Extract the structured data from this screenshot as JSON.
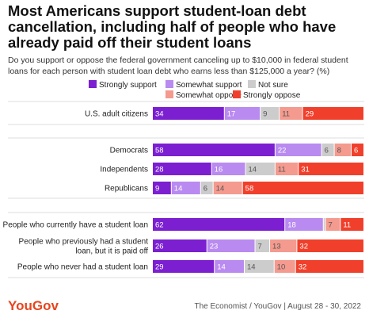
{
  "title": "Most Americans support student-loan debt cancellation, including half of people who have already paid off their student loans",
  "subtitle": "Do you support or oppose the federal government canceling up to $10,000 in federal student loans for each person with student loan debt who earns less than $125,000 a year? (%)",
  "legend": [
    {
      "label": "Strongly support",
      "color": "#7b1fd1"
    },
    {
      "label": "Somewhat support",
      "color": "#b98af0"
    },
    {
      "label": "Not sure",
      "color": "#cccccc"
    },
    {
      "label": "Somewhat oppose",
      "color": "#f49a8e"
    },
    {
      "label": "Strongly oppose",
      "color": "#f0402b"
    }
  ],
  "footer": {
    "logo": "YouGov",
    "source": "The Economist / YouGov | August 28 - 30, 2022"
  },
  "chart_data": {
    "type": "bar",
    "orientation": "horizontal",
    "stacked": true,
    "xlim": [
      0,
      100
    ],
    "series_names": [
      "Strongly support",
      "Somewhat support",
      "Not sure",
      "Somewhat oppose",
      "Strongly oppose"
    ],
    "groups": [
      {
        "rows": [
          {
            "label": [
              "U.S. adult citizens"
            ],
            "values": [
              34,
              17,
              9,
              11,
              29
            ]
          }
        ]
      },
      {
        "rows": [
          {
            "label": [
              "Democrats"
            ],
            "values": [
              58,
              22,
              6,
              8,
              6
            ]
          },
          {
            "label": [
              "Independents"
            ],
            "values": [
              28,
              16,
              14,
              11,
              31
            ]
          },
          {
            "label": [
              "Republicans"
            ],
            "values": [
              9,
              14,
              6,
              14,
              58
            ]
          }
        ]
      },
      {
        "rows": [
          {
            "label": [
              "People who currently have a student loan"
            ],
            "values": [
              62,
              18,
              1,
              7,
              11
            ]
          },
          {
            "label": [
              "People who previously had a student",
              "loan, but it is paid off"
            ],
            "values": [
              26,
              23,
              7,
              13,
              32
            ]
          },
          {
            "label": [
              "People who never had a student loan"
            ],
            "values": [
              29,
              14,
              14,
              10,
              32
            ]
          }
        ]
      }
    ]
  }
}
